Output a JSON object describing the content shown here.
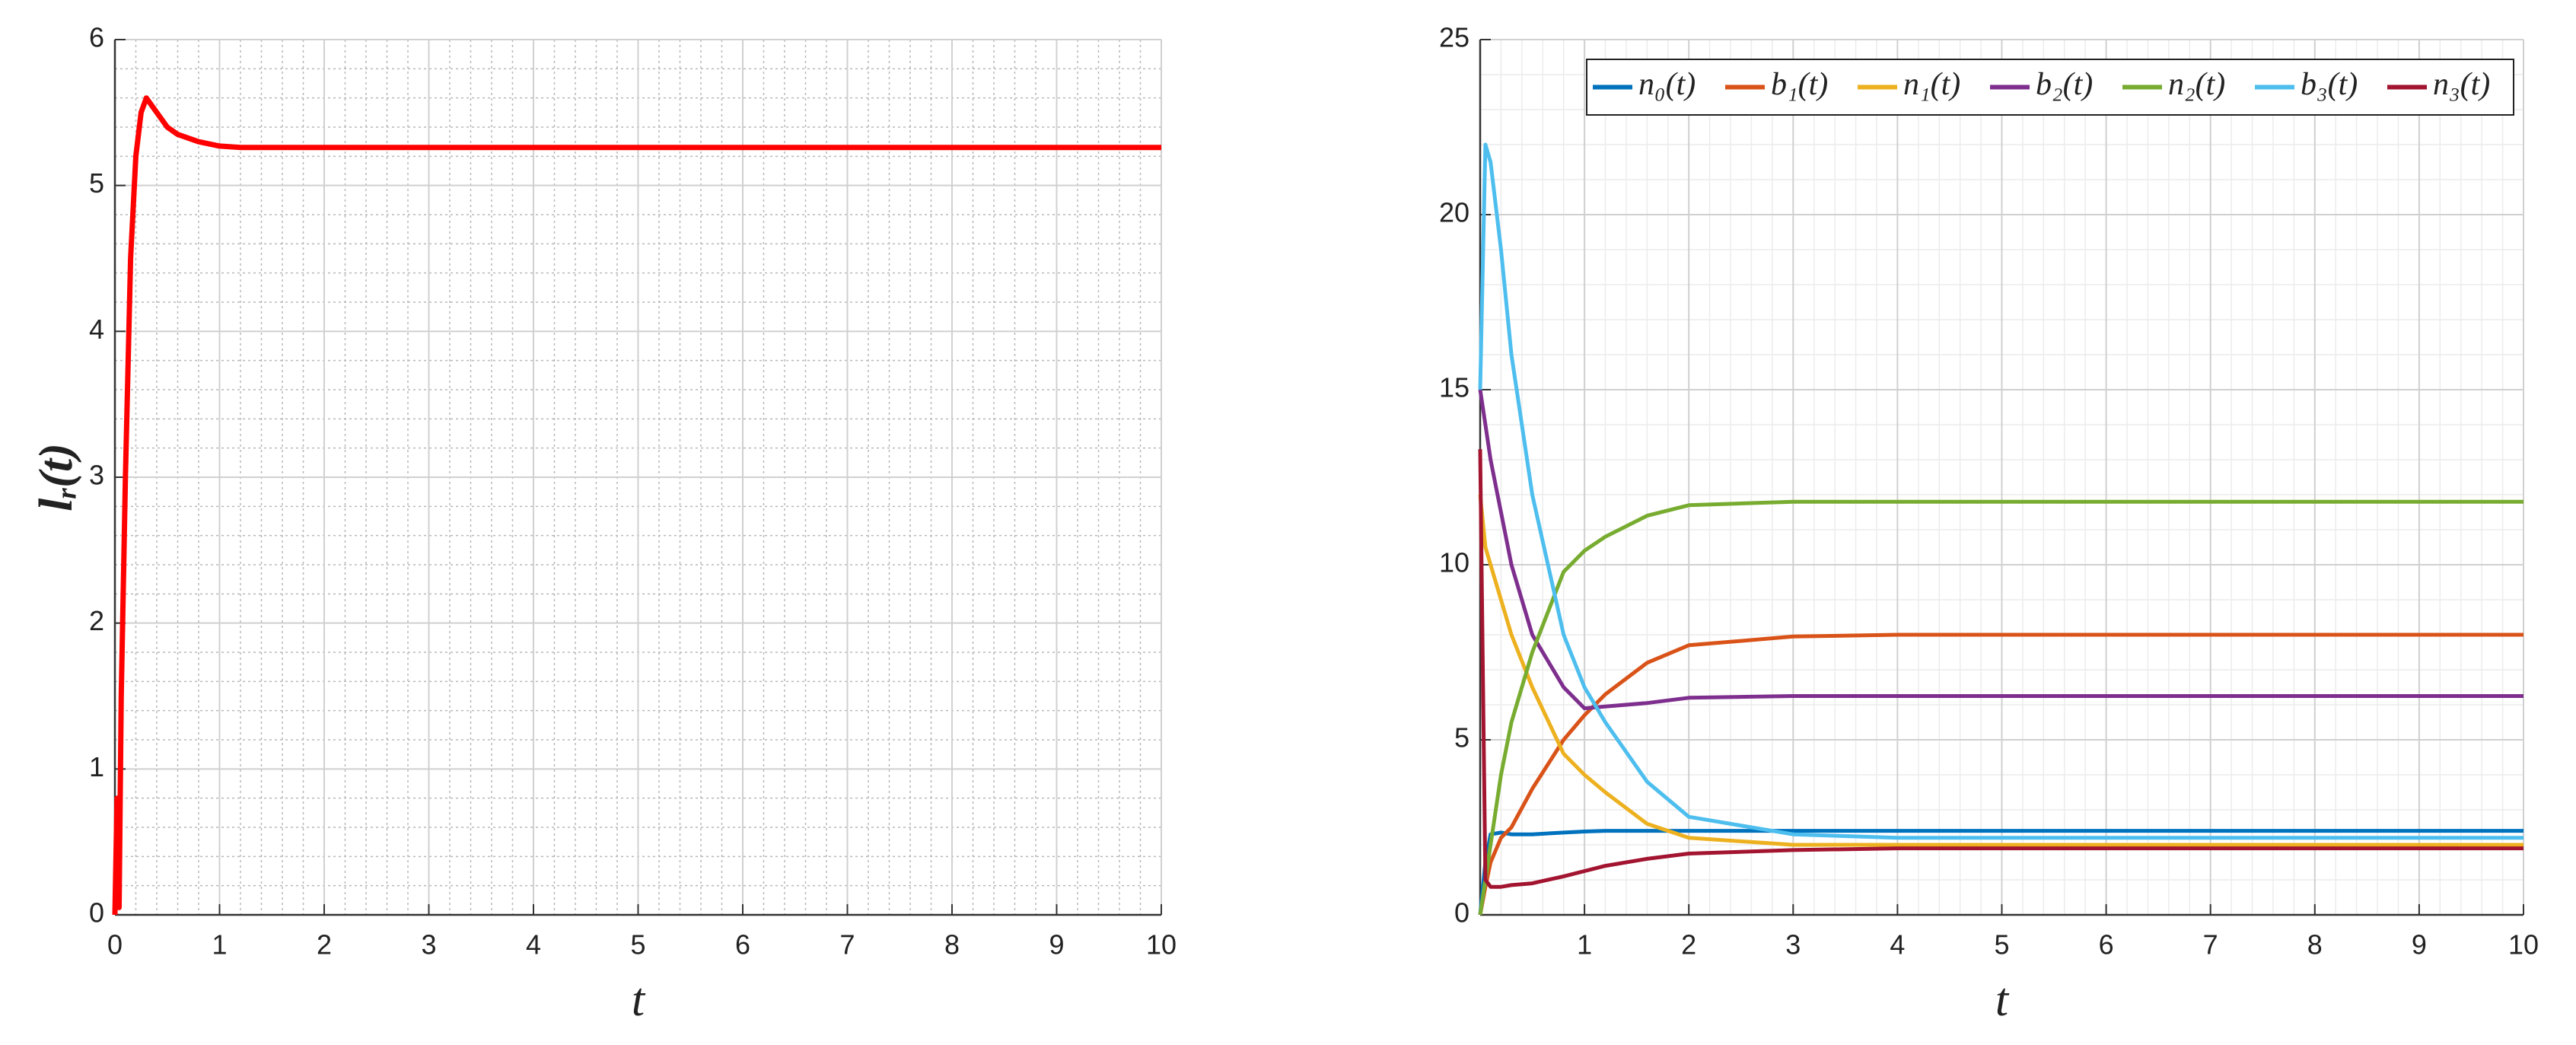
{
  "chart_data": [
    {
      "type": "line",
      "y_label": "lᵣ(t)",
      "x_label": "t",
      "x": [
        0,
        0.02,
        0.04,
        0.06,
        0.1,
        0.15,
        0.2,
        0.25,
        0.3,
        0.4,
        0.5,
        0.6,
        0.8,
        1.0,
        1.2,
        1.5,
        2,
        4,
        6,
        8,
        10
      ],
      "series": [
        {
          "name": "lᵣ(t)",
          "color": "#ff0000",
          "values": [
            0,
            0.8,
            0.05,
            1.5,
            3.0,
            4.5,
            5.2,
            5.5,
            5.6,
            5.5,
            5.4,
            5.35,
            5.3,
            5.27,
            5.26,
            5.26,
            5.26,
            5.26,
            5.26,
            5.26,
            5.26
          ]
        }
      ],
      "xlim": [
        0,
        10
      ],
      "ylim": [
        0,
        6
      ],
      "xticks": [
        0,
        1,
        2,
        3,
        4,
        5,
        6,
        7,
        8,
        9,
        10
      ],
      "yticks": [
        0,
        1,
        2,
        3,
        4,
        5,
        6
      ],
      "grid": true,
      "minor_grid": true,
      "legend": false
    },
    {
      "type": "line",
      "x_label": "t",
      "x": [
        0,
        0.05,
        0.1,
        0.2,
        0.3,
        0.5,
        0.8,
        1.0,
        1.2,
        1.6,
        2,
        3,
        4,
        6,
        8,
        10
      ],
      "series": [
        {
          "name": "n₀(t)",
          "color": "#0072bd",
          "values": [
            0,
            1.5,
            2.3,
            2.35,
            2.3,
            2.3,
            2.35,
            2.38,
            2.4,
            2.4,
            2.4,
            2.4,
            2.4,
            2.4,
            2.4,
            2.4
          ]
        },
        {
          "name": "b₁(t)",
          "color": "#d95319",
          "values": [
            0,
            0.8,
            1.5,
            2.2,
            2.5,
            3.6,
            5.0,
            5.7,
            6.3,
            7.2,
            7.7,
            7.95,
            8,
            8,
            8,
            8
          ]
        },
        {
          "name": "n₁(t)",
          "color": "#edb120",
          "values": [
            12,
            10.5,
            10,
            9,
            8,
            6.5,
            4.6,
            4,
            3.5,
            2.6,
            2.2,
            2.0,
            2.0,
            2.0,
            2.0,
            2.0
          ]
        },
        {
          "name": "b₂(t)",
          "color": "#7e2f8e",
          "values": [
            15,
            14,
            13,
            11.5,
            10,
            8,
            6.5,
            5.9,
            5.95,
            6.05,
            6.2,
            6.25,
            6.25,
            6.25,
            6.25,
            6.25
          ]
        },
        {
          "name": "n₂(t)",
          "color": "#77ac30",
          "values": [
            0,
            1,
            2,
            4,
            5.5,
            7.5,
            9.8,
            10.4,
            10.8,
            11.4,
            11.7,
            11.8,
            11.8,
            11.8,
            11.8,
            11.8
          ]
        },
        {
          "name": "b₃(t)",
          "color": "#4dbeee",
          "values": [
            15,
            22,
            21.5,
            19,
            16,
            12,
            8,
            6.5,
            5.5,
            3.8,
            2.8,
            2.3,
            2.2,
            2.2,
            2.2,
            2.2
          ]
        },
        {
          "name": "n₃(t)",
          "color": "#a2142f",
          "values": [
            13.3,
            1,
            0.8,
            0.8,
            0.85,
            0.9,
            1.1,
            1.25,
            1.4,
            1.6,
            1.75,
            1.85,
            1.9,
            1.9,
            1.9,
            1.9
          ]
        }
      ],
      "xlim": [
        0,
        10
      ],
      "ylim": [
        0,
        25
      ],
      "xticks": [
        1,
        2,
        3,
        4,
        5,
        6,
        7,
        8,
        9,
        10
      ],
      "yticks": [
        0,
        5,
        10,
        15,
        20,
        25
      ],
      "grid": true,
      "minor_grid": true,
      "legend": "upper right"
    }
  ]
}
